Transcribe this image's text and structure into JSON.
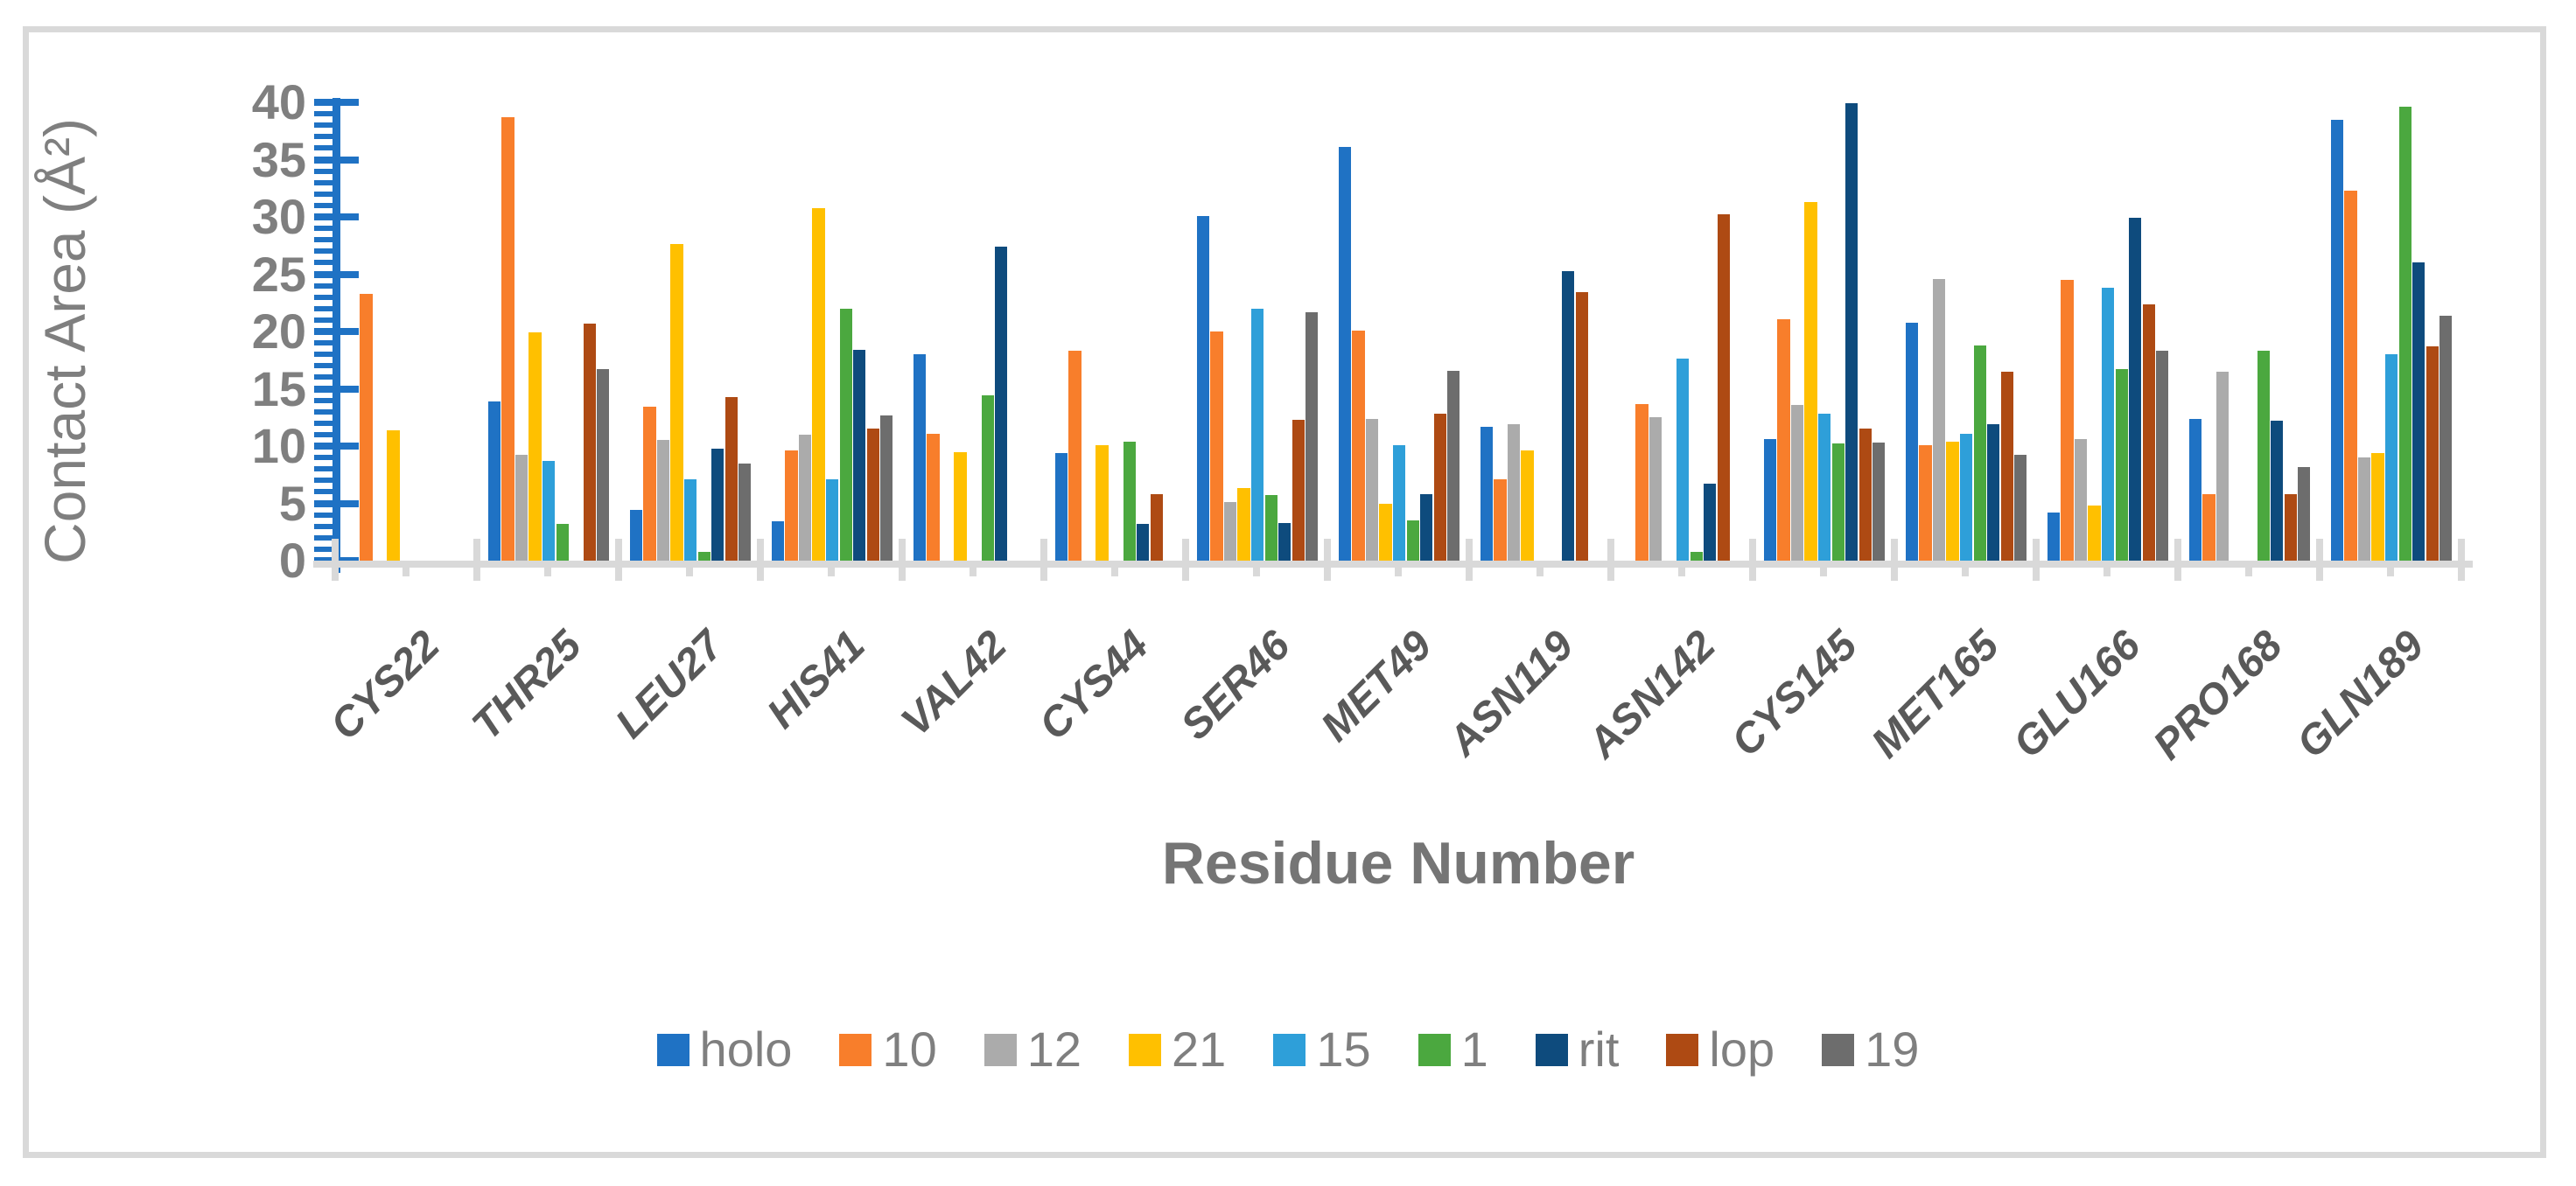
{
  "figure": {
    "border_color": "#D9D9D9",
    "background": "#FFFFFF"
  },
  "chart_data": {
    "type": "bar",
    "title": "",
    "xlabel": "Residue Number",
    "ylabel": "Contact Area (Å²)",
    "ylim": [
      0,
      40
    ],
    "yticks": [
      0,
      5,
      10,
      15,
      20,
      25,
      30,
      35,
      40
    ],
    "ytick_major_interval": 5,
    "ytick_minor_interval": 1,
    "grid": false,
    "legend_position": "bottom-center",
    "categories": [
      "CYS22",
      "THR25",
      "LEU27",
      "HIS41",
      "VAL42",
      "CYS44",
      "SER46",
      "MET49",
      "ASN119",
      "ASN142",
      "CYS145",
      "MET165",
      "GLU166",
      "PRO168",
      "GLN189"
    ],
    "series": [
      {
        "name": "holo",
        "color": "#1F72C4",
        "values": [
          0,
          13.9,
          4.4,
          3.4,
          18.0,
          9.4,
          30.1,
          36.1,
          11.7,
          0,
          10.6,
          20.8,
          4.2,
          12.4,
          38.5
        ]
      },
      {
        "name": "10",
        "color": "#F87E2B",
        "values": [
          23.3,
          38.7,
          13.4,
          9.6,
          11.1,
          18.3,
          20.0,
          20.1,
          7.1,
          13.7,
          21.1,
          10.1,
          24.5,
          5.8,
          32.3
        ]
      },
      {
        "name": "12",
        "color": "#ABABAB",
        "values": [
          0,
          9.2,
          10.5,
          11.0,
          0,
          0,
          5.1,
          12.4,
          11.9,
          12.5,
          13.6,
          24.6,
          10.6,
          16.5,
          9.0
        ]
      },
      {
        "name": "21",
        "color": "#FFC000",
        "values": [
          11.4,
          19.9,
          27.6,
          30.8,
          9.5,
          10.1,
          6.3,
          5.0,
          9.6,
          0,
          31.3,
          10.4,
          4.8,
          0,
          9.4
        ]
      },
      {
        "name": "15",
        "color": "#2E9FD9",
        "values": [
          0,
          8.7,
          7.1,
          7.1,
          0,
          0,
          22.0,
          10.1,
          0,
          17.6,
          12.8,
          11.1,
          23.8,
          0,
          18.0
        ]
      },
      {
        "name": "1",
        "color": "#4BA83F",
        "values": [
          0,
          3.2,
          0.8,
          22.0,
          14.4,
          10.4,
          5.7,
          3.5,
          0,
          0.8,
          10.2,
          18.8,
          16.7,
          18.3,
          39.6
        ]
      },
      {
        "name": "rit",
        "color": "#0E4B7D",
        "values": [
          0,
          0,
          9.8,
          18.4,
          27.4,
          3.2,
          3.3,
          5.8,
          25.3,
          6.7,
          39.9,
          11.9,
          29.9,
          12.2,
          26.0
        ]
      },
      {
        "name": "lop",
        "color": "#AE4A13",
        "values": [
          0,
          20.7,
          14.3,
          11.5,
          0,
          5.8,
          12.3,
          12.8,
          23.4,
          30.2,
          11.5,
          16.5,
          22.4,
          5.8,
          18.7
        ]
      },
      {
        "name": "19",
        "color": "#6D6D6D",
        "values": [
          0,
          16.7,
          8.5,
          12.7,
          0,
          0,
          21.7,
          16.6,
          0,
          0,
          10.3,
          9.2,
          18.3,
          8.2,
          21.4
        ]
      }
    ]
  },
  "colors": {
    "axis_line": "#1F72C4",
    "baseline": "#D9D9D9",
    "tick_label": "#7F7F7F",
    "category_label": "#595959",
    "axis_title": "#757575",
    "legend_text": "#7F7F7F"
  }
}
